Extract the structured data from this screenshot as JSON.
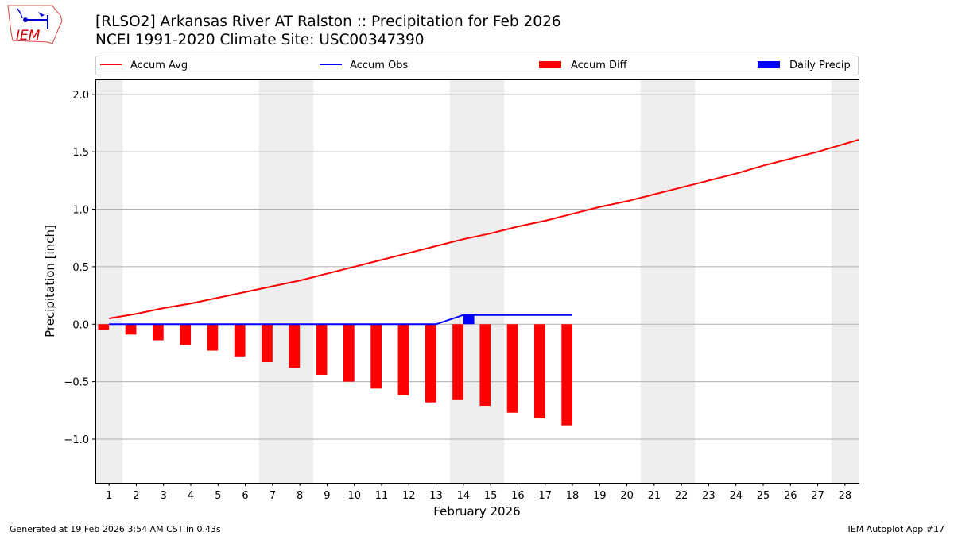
{
  "header": {
    "title": "[RLSO2] Arkansas River  AT Ralston :: Precipitation for Feb 2026",
    "subtitle": "NCEI 1991-2020 Climate Site: USC00347390"
  },
  "logo": {
    "text": "IEM"
  },
  "footer": {
    "left": "Generated at 19 Feb 2026 3:54 AM CST in 0.43s",
    "right": "IEM Autoplot App #17"
  },
  "chart_data": {
    "type": "bar",
    "xlabel": "February 2026",
    "ylabel": "Precipitation [inch]",
    "ylim": [
      -1.38,
      2.13
    ],
    "xlim": [
      0.5,
      28.5
    ],
    "yticks": [
      -1.0,
      -0.5,
      0.0,
      0.5,
      1.0,
      1.5,
      2.0
    ],
    "ytick_labels": [
      "−1.0",
      "−0.5",
      "0.0",
      "0.5",
      "1.0",
      "1.5",
      "2.0"
    ],
    "days": [
      1,
      2,
      3,
      4,
      5,
      6,
      7,
      8,
      9,
      10,
      11,
      12,
      13,
      14,
      15,
      16,
      17,
      18,
      19,
      20,
      21,
      22,
      23,
      24,
      25,
      26,
      27,
      28
    ],
    "grid": "horizontal",
    "legend_placement": "top",
    "weekend_shading": [
      [
        0.5,
        1.5
      ],
      [
        6.5,
        8.5
      ],
      [
        13.5,
        15.5
      ],
      [
        20.5,
        22.5
      ],
      [
        27.5,
        28.5
      ]
    ],
    "series": [
      {
        "name": "Accum Avg",
        "kind": "line",
        "color": "#ff0000",
        "values": [
          0.05,
          0.09,
          0.14,
          0.18,
          0.23,
          0.28,
          0.33,
          0.38,
          0.44,
          0.5,
          0.56,
          0.62,
          0.68,
          0.74,
          0.79,
          0.85,
          0.9,
          0.96,
          1.02,
          1.07,
          1.13,
          1.19,
          1.25,
          1.31,
          1.38,
          1.44,
          1.5,
          1.57
        ]
      },
      {
        "name": "Accum Obs",
        "kind": "line",
        "color": "#0000ff",
        "values": [
          0,
          0,
          0,
          0,
          0,
          0,
          0,
          0,
          0,
          0,
          0,
          0,
          0,
          0.08,
          0.08,
          0.08,
          0.08,
          0.08
        ]
      },
      {
        "name": "Accum Diff",
        "kind": "bar",
        "color": "#ff0000",
        "values": [
          -0.05,
          -0.09,
          -0.14,
          -0.18,
          -0.23,
          -0.28,
          -0.33,
          -0.38,
          -0.44,
          -0.5,
          -0.56,
          -0.62,
          -0.68,
          -0.66,
          -0.71,
          -0.77,
          -0.82,
          -0.88
        ]
      },
      {
        "name": "Daily Precip",
        "kind": "bar",
        "color": "#0000ff",
        "values": [
          0,
          0,
          0,
          0,
          0,
          0,
          0,
          0,
          0,
          0,
          0,
          0,
          0,
          0.08,
          0,
          0,
          0,
          0
        ]
      }
    ]
  }
}
